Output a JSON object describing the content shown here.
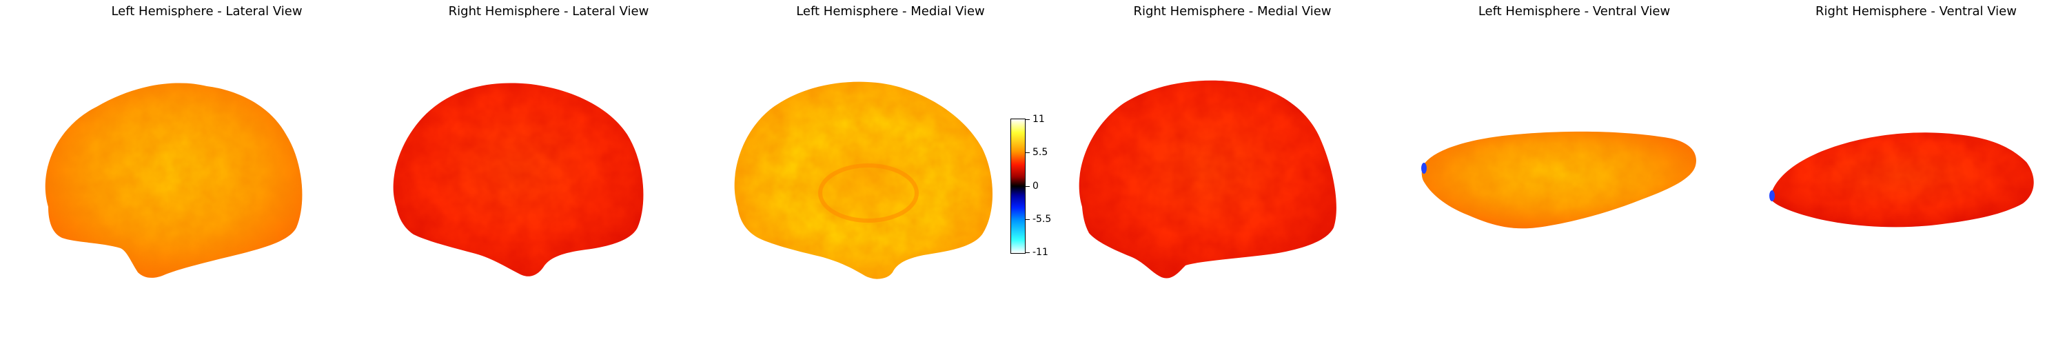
{
  "panels": [
    {
      "title": "Left Hemisphere - Lateral View"
    },
    {
      "title": "Right Hemisphere - Lateral View"
    },
    {
      "title": "Left Hemisphere - Medial View"
    },
    {
      "title": "Right Hemisphere - Medial View"
    },
    {
      "title": "Left Hemisphere - Ventral View"
    },
    {
      "title": "Right Hemisphere - Ventral View"
    }
  ],
  "colorbar": {
    "ticks": [
      "11",
      "5.5",
      "0",
      "-5.5",
      "-11"
    ],
    "colors": {
      "high": "#ffffff",
      "yellow": "#ffff33",
      "orange": "#ff9900",
      "red": "#ff1a00",
      "zero": "#000000",
      "blue": "#0022ff",
      "cyan": "#33ffff",
      "low": "#ffffff"
    }
  },
  "colors": {
    "brain_orange": "#ffa200",
    "brain_red": "#ff3300",
    "brain_yellow": "#ffd400"
  }
}
